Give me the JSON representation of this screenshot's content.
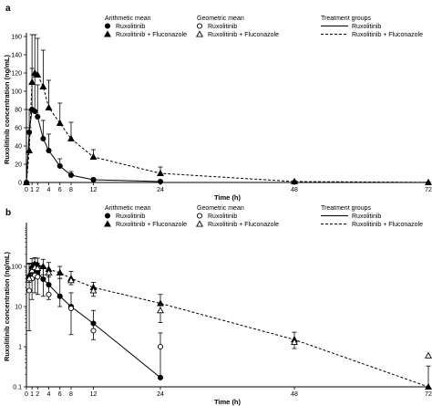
{
  "chart_data": [
    {
      "panel": "a",
      "type": "line",
      "scale": "linear",
      "xlabel": "Time (h)",
      "ylabel": "Ruxolitinib concentration (ng/mL)",
      "xlim": [
        0,
        72
      ],
      "ylim": [
        0,
        160
      ],
      "x_ticks": [
        "0",
        "1",
        "2",
        "4",
        "6",
        "8",
        "12",
        "24",
        "48",
        "72"
      ],
      "y_ticks": [
        "0",
        "20",
        "40",
        "60",
        "80",
        "100",
        "120",
        "140",
        "160"
      ],
      "legend": {
        "arith_header": "Arithmetic mean",
        "geo_header": "Geometric mean",
        "treat_header": "Treatment groups",
        "arith_rux": "Ruxolitinib",
        "arith_fluc": "Ruxolitinib + Fluconazole",
        "geo_rux": "Ruxolitinib",
        "geo_fluc": "Ruxolitinib + Fluconazole",
        "treat_rux": "Ruxolitinib",
        "treat_fluc": "Ruxolitinib + Fluconazole"
      },
      "series": [
        {
          "name": "Ruxolitinib",
          "marker": "filled-circle",
          "line": "solid",
          "x": [
            0,
            0.5,
            1,
            1.5,
            2,
            3,
            4,
            6,
            8,
            12,
            24
          ],
          "y": [
            0,
            55,
            80,
            78,
            72,
            48,
            35,
            18,
            8,
            3,
            1
          ],
          "err": [
            0,
            25,
            45,
            40,
            35,
            20,
            18,
            8,
            4,
            2,
            1
          ]
        },
        {
          "name": "Ruxolitinib + Fluconazole",
          "marker": "filled-triangle",
          "line": "dashed",
          "x": [
            0,
            0.5,
            1,
            1.5,
            2,
            3,
            4,
            6,
            8,
            12,
            24,
            48,
            72
          ],
          "y": [
            0,
            35,
            110,
            120,
            118,
            105,
            82,
            65,
            48,
            28,
            10,
            1,
            0.1
          ],
          "err": [
            0,
            25,
            52,
            42,
            40,
            40,
            30,
            22,
            18,
            8,
            7,
            1,
            0.5
          ]
        }
      ]
    },
    {
      "panel": "b",
      "type": "line",
      "scale": "log",
      "xlabel": "Time (h)",
      "ylabel": "Ruxolitinib concentration (ng/mL)",
      "xlim": [
        0,
        72
      ],
      "ylim": [
        0.1,
        1000
      ],
      "x_ticks": [
        "0",
        "1",
        "2",
        "4",
        "6",
        "8",
        "12",
        "24",
        "48",
        "72"
      ],
      "y_ticks": [
        "0.1",
        "1",
        "10",
        "100"
      ],
      "legend": {
        "arith_header": "Arithmetic mean",
        "geo_header": "Geometric mean",
        "treat_header": "Treatment groups",
        "arith_rux": "Ruxolitinib",
        "arith_fluc": "Ruxolitinib + Fluconazole",
        "geo_rux": "Ruxolitinib",
        "geo_fluc": "Ruxolitinib + Fluconazole",
        "treat_rux": "Ruxolitinib",
        "treat_fluc": "Ruxolitinib + Fluconazole"
      },
      "series": [
        {
          "name": "Ruxolitinib",
          "marker": "filled-circle",
          "line": "solid",
          "x": [
            0.5,
            1,
            1.5,
            2,
            3,
            4,
            6,
            8,
            12,
            24
          ],
          "y": [
            55,
            75,
            80,
            72,
            48,
            35,
            18,
            10,
            3.8,
            0.17
          ],
          "err_hi": [
            115,
            120,
            125,
            120,
            100,
            85,
            50,
            22,
            8,
            2.2
          ],
          "err_lo": [
            2.5,
            15,
            22,
            20,
            18,
            15,
            10,
            2,
            1.5,
            0.17
          ]
        },
        {
          "name": "Ruxolitinib + Fluconazole",
          "marker": "filled-triangle",
          "line": "dashed",
          "x": [
            0.5,
            1,
            1.5,
            2,
            3,
            4,
            6,
            8,
            12,
            24,
            48,
            72
          ],
          "y": [
            60,
            100,
            115,
            110,
            100,
            85,
            70,
            50,
            30,
            12,
            1.5,
            0.09
          ],
          "err_hi": [
            120,
            155,
            165,
            160,
            150,
            125,
            100,
            75,
            40,
            20,
            2.3,
            0.33
          ],
          "err_lo": [
            40,
            60,
            70,
            65,
            62,
            55,
            50,
            35,
            18,
            4,
            0.9,
            0.09
          ]
        },
        {
          "name": "Ruxolitinib",
          "marker": "open-circle",
          "line": "none",
          "x": [
            0.5,
            1,
            1.5,
            2,
            4,
            8,
            12,
            24
          ],
          "y": [
            25,
            50,
            60,
            55,
            20,
            9,
            2.5,
            1
          ]
        },
        {
          "name": "Ruxolitinib + Fluconazole",
          "marker": "open-triangle",
          "line": "none",
          "x": [
            0.5,
            1,
            1.5,
            2,
            4,
            8,
            12,
            24,
            48,
            72
          ],
          "y": [
            50,
            80,
            95,
            90,
            70,
            45,
            25,
            8,
            1.3,
            0.6
          ]
        }
      ]
    }
  ]
}
